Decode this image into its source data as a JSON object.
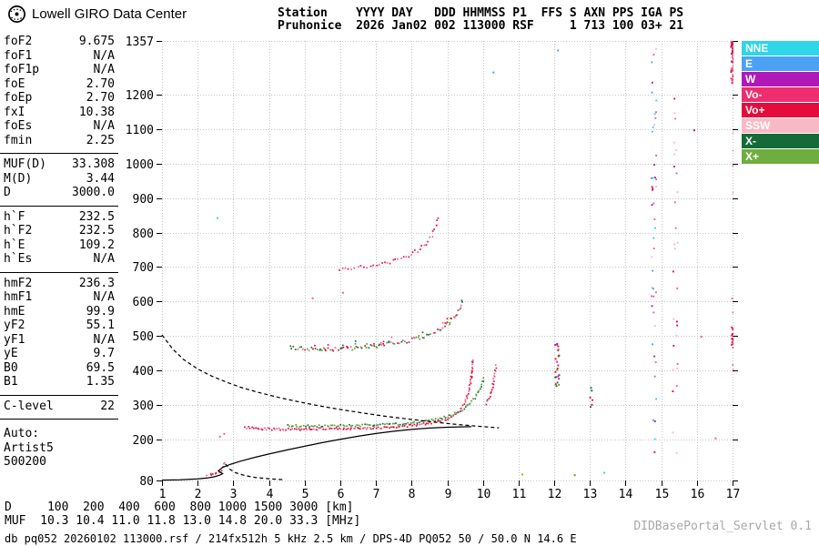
{
  "header": {
    "logo_text": "Lowell GIRO Data Center",
    "line1": "Station    YYYY DAY   DDD HHMMSS P1  FFS S AXN PPS IGA PS",
    "line2": "Pruhonice  2026 Jan02 002 113000 RSF     1 713 100 03+ 21"
  },
  "params": {
    "groups": [
      {
        "rows": [
          [
            "foF2",
            "9.675"
          ],
          [
            "foF1",
            "N/A"
          ],
          [
            "foF1p",
            "N/A"
          ],
          [
            "foE",
            "2.70"
          ],
          [
            "foEp",
            "2.70"
          ],
          [
            "fxI",
            "10.38"
          ],
          [
            "foEs",
            "N/A"
          ],
          [
            "fmin",
            "2.25"
          ]
        ]
      },
      {
        "rows": [
          [
            "MUF(D)",
            "33.308"
          ],
          [
            "M(D)",
            "3.44"
          ],
          [
            "D",
            "3000.0"
          ]
        ]
      },
      {
        "rows": [
          [
            "h`F",
            "232.5"
          ],
          [
            "h`F2",
            "232.5"
          ],
          [
            "h`E",
            "109.2"
          ],
          [
            "h`Es",
            "N/A"
          ]
        ]
      },
      {
        "rows": [
          [
            "hmF2",
            "236.3"
          ],
          [
            "hmF1",
            "N/A"
          ],
          [
            "hmE",
            "99.9"
          ],
          [
            "yF2",
            "55.1"
          ],
          [
            "yF1",
            "N/A"
          ],
          [
            "yE",
            "9.7"
          ],
          [
            "B0",
            "69.5"
          ],
          [
            "B1",
            "1.35"
          ]
        ]
      },
      {
        "rows": [
          [
            "C-level",
            "22"
          ]
        ]
      }
    ],
    "auto": [
      "Auto:",
      "Artist5",
      "500200"
    ]
  },
  "legend": [
    {
      "label": "NNE",
      "color": "#2fd5e9"
    },
    {
      "label": "E",
      "color": "#4ba2f5"
    },
    {
      "label": "W",
      "color": "#b118b8"
    },
    {
      "label": "Vo-",
      "color": "#ee2e6e"
    },
    {
      "label": "Vo+",
      "color": "#e50c3c"
    },
    {
      "label": "SSW",
      "color": "#f9b9c4"
    },
    {
      "label": "X-",
      "color": "#156a39"
    },
    {
      "label": "X+",
      "color": "#6fae3e"
    }
  ],
  "colors": {
    "background": "#ffffff",
    "grid": "#c4c4c4",
    "axis": "#000000",
    "servlet_text": "#a8a8a8"
  },
  "chart_data": {
    "type": "scatter",
    "title": "Ionogram Pruhonice 2026 Jan02 113000",
    "x_unit": "MHz",
    "y_unit": "km",
    "xlim": [
      1,
      17
    ],
    "ylim": [
      80,
      1357
    ],
    "x_ticks": [
      1,
      2,
      3,
      4,
      5,
      6,
      7,
      8,
      9,
      10,
      11,
      12,
      13,
      14,
      15,
      16,
      17
    ],
    "y_ticks": [
      80,
      200,
      300,
      400,
      500,
      600,
      700,
      800,
      900,
      1000,
      1100,
      1200,
      1357
    ],
    "grid": true,
    "series": [
      {
        "name": "E-trace",
        "mode": "dots",
        "colors": [
          "#e50c3c",
          "#f06090"
        ],
        "step": 2.2,
        "jitter": 2.2,
        "points": [
          [
            2.25,
            98
          ],
          [
            2.33,
            99
          ],
          [
            2.42,
            101
          ],
          [
            2.5,
            104
          ],
          [
            2.57,
            108
          ],
          [
            2.63,
            113
          ],
          [
            2.68,
            120
          ],
          [
            2.72,
            129
          ],
          [
            2.76,
            141
          ]
        ]
      },
      {
        "name": "F-trace-ordinary",
        "mode": "dots",
        "colors": [
          "#e50c3c",
          "#e50c3c",
          "#f06090"
        ],
        "step": 2.0,
        "jitter": 2.6,
        "points": [
          [
            3.3,
            237
          ],
          [
            3.6,
            233.5
          ],
          [
            4,
            232
          ],
          [
            4.5,
            231.5
          ],
          [
            5,
            231.5
          ],
          [
            5.5,
            232
          ],
          [
            6,
            233
          ],
          [
            6.5,
            234
          ],
          [
            7,
            235.5
          ],
          [
            7.4,
            237.5
          ],
          [
            7.8,
            240.5
          ],
          [
            8.1,
            243.5
          ],
          [
            8.4,
            247.5
          ],
          [
            8.7,
            253
          ],
          [
            9,
            262
          ],
          [
            9.2,
            273
          ],
          [
            9.35,
            289
          ],
          [
            9.47,
            308
          ],
          [
            9.57,
            336
          ],
          [
            9.64,
            372
          ],
          [
            9.68,
            412
          ],
          [
            9.7,
            438
          ]
        ]
      },
      {
        "name": "F-trace-extraordinary",
        "mode": "dots",
        "colors": [
          "#569e38",
          "#156a39",
          "#569e38"
        ],
        "step": 2.2,
        "jitter": 2.4,
        "points": [
          [
            4.5,
            241
          ],
          [
            5,
            240.5
          ],
          [
            5.5,
            240.5
          ],
          [
            6,
            241
          ],
          [
            6.5,
            242
          ],
          [
            7,
            243.5
          ],
          [
            7.5,
            246
          ],
          [
            8,
            249.5
          ],
          [
            8.3,
            253
          ],
          [
            8.6,
            258
          ],
          [
            8.9,
            265
          ],
          [
            9.15,
            274
          ],
          [
            9.4,
            287
          ],
          [
            9.6,
            304
          ],
          [
            9.78,
            327
          ],
          [
            9.92,
            355
          ],
          [
            10.02,
            385
          ]
        ]
      },
      {
        "name": "x-mode-cusp",
        "mode": "dots",
        "colors": [
          "#f06090",
          "#e50c3c"
        ],
        "step": 2.2,
        "jitter": 2.2,
        "points": [
          [
            10.08,
            305
          ],
          [
            10.17,
            328
          ],
          [
            10.25,
            355
          ],
          [
            10.31,
            388
          ],
          [
            10.36,
            422
          ]
        ]
      },
      {
        "name": "second-hop",
        "mode": "dots",
        "colors": [
          "#e50c3c",
          "#f06090",
          "#569e38",
          "#156a39"
        ],
        "step": 2.4,
        "jitter": 4.5,
        "double": true,
        "points": [
          [
            4.6,
            469
          ],
          [
            5,
            466
          ],
          [
            5.4,
            464
          ],
          [
            5.8,
            464.5
          ],
          [
            6.2,
            466
          ],
          [
            6.6,
            469
          ],
          [
            7,
            473
          ],
          [
            7.4,
            478.5
          ],
          [
            7.8,
            486
          ],
          [
            8.1,
            494
          ],
          [
            8.4,
            504
          ],
          [
            8.7,
            517
          ],
          [
            8.95,
            533
          ],
          [
            9.15,
            553
          ],
          [
            9.3,
            578
          ],
          [
            9.42,
            608
          ]
        ]
      },
      {
        "name": "third-hop",
        "mode": "dots",
        "colors": [
          "#e50c3c",
          "#f06090"
        ],
        "step": 3.2,
        "jitter": 4,
        "points": [
          [
            5.95,
            698
          ],
          [
            6.3,
            700
          ],
          [
            6.65,
            703.5
          ],
          [
            7,
            708
          ],
          [
            7.3,
            715
          ],
          [
            7.6,
            724
          ],
          [
            7.9,
            736
          ],
          [
            8.15,
            751
          ],
          [
            8.38,
            771
          ],
          [
            8.55,
            794
          ],
          [
            8.67,
            820
          ],
          [
            8.74,
            849
          ]
        ]
      },
      {
        "name": "true-height-profile",
        "mode": "line",
        "style": "solid",
        "color": "#000000",
        "points": [
          [
            1,
            81
          ],
          [
            1.5,
            82
          ],
          [
            2,
            84.5
          ],
          [
            2.3,
            87.5
          ],
          [
            2.5,
            91.5
          ],
          [
            2.63,
            96
          ],
          [
            2.7,
            100
          ],
          [
            2.58,
            108
          ],
          [
            2.7,
            118
          ],
          [
            2.92,
            127
          ],
          [
            3.2,
            136
          ],
          [
            3.6,
            147
          ],
          [
            4,
            157
          ],
          [
            4.5,
            168.5
          ],
          [
            5,
            179.5
          ],
          [
            5.5,
            190
          ],
          [
            6,
            199.5
          ],
          [
            6.5,
            208.5
          ],
          [
            7,
            216.5
          ],
          [
            7.5,
            223
          ],
          [
            8,
            228.5
          ],
          [
            8.5,
            232.3
          ],
          [
            9,
            234.6
          ],
          [
            9.35,
            235.7
          ],
          [
            9.675,
            236.3
          ]
        ]
      },
      {
        "name": "muf-transmission-curve",
        "mode": "line",
        "style": "dashed",
        "color": "#000000",
        "points": [
          [
            1,
            503
          ],
          [
            1.3,
            462
          ],
          [
            1.6,
            432
          ],
          [
            2,
            404
          ],
          [
            2.4,
            383
          ],
          [
            2.8,
            366
          ],
          [
            3.2,
            351
          ],
          [
            3.7,
            336
          ],
          [
            4.2,
            323
          ],
          [
            4.7,
            311.5
          ],
          [
            5.2,
            301
          ],
          [
            5.7,
            291.5
          ],
          [
            6.2,
            283
          ],
          [
            6.7,
            275
          ],
          [
            7.2,
            267.5
          ],
          [
            7.7,
            261
          ],
          [
            8.2,
            255
          ],
          [
            8.7,
            249
          ],
          [
            9.2,
            243.5
          ],
          [
            9.7,
            239
          ],
          [
            10.1,
            235.5
          ],
          [
            10.45,
            233
          ]
        ]
      },
      {
        "name": "profile-extrapolated",
        "mode": "line",
        "style": "dashed",
        "color": "#000000",
        "points": [
          [
            2.78,
            128
          ],
          [
            2.9,
            113
          ],
          [
            3.05,
            103
          ],
          [
            3.3,
            95
          ],
          [
            3.6,
            89
          ],
          [
            4,
            85
          ],
          [
            4.4,
            82.5
          ]
        ]
      },
      {
        "name": "noise-12MHz",
        "mode": "noise",
        "f": [
          12.0,
          12.12
        ],
        "h": [
          348,
          480
        ],
        "count": 24,
        "colors": [
          "#e50c3c",
          "#569e38",
          "#156a39",
          "#a81cb4"
        ]
      },
      {
        "name": "noise-13MHz",
        "mode": "noise",
        "f": [
          12.98,
          13.08
        ],
        "h": [
          285,
          355
        ],
        "count": 6,
        "colors": [
          "#e50c3c",
          "#156a39"
        ]
      },
      {
        "name": "noise-14.8MHz",
        "mode": "noise",
        "f": [
          14.7,
          14.85
        ],
        "h": [
          95,
          1350
        ],
        "count": 46,
        "colors": [
          "#2fd5e9",
          "#4ba2f5",
          "#e50c3c",
          "#f06090",
          "#a81cb4",
          "#f9b9c4"
        ]
      },
      {
        "name": "noise-15.4MHz",
        "mode": "noise",
        "f": [
          15.3,
          15.44
        ],
        "h": [
          110,
          1270
        ],
        "count": 28,
        "colors": [
          "#e50c3c",
          "#f06090",
          "#f9b9c4"
        ]
      },
      {
        "name": "noise-17MHz-top",
        "mode": "noise",
        "f": [
          16.93,
          17.05
        ],
        "h": [
          1235,
          1357
        ],
        "count": 70,
        "colors": [
          "#e50c3c",
          "#e50c3c",
          "#f06090"
        ]
      },
      {
        "name": "noise-17MHz-mid",
        "mode": "noise",
        "f": [
          16.95,
          17.05
        ],
        "h": [
          462,
          528
        ],
        "count": 26,
        "colors": [
          "#e50c3c"
        ]
      },
      {
        "name": "noise-17MHz-sparse",
        "mode": "noise",
        "f": [
          16.95,
          17.05
        ],
        "h": [
          150,
          1200
        ],
        "count": 12,
        "colors": [
          "#e50c3c",
          "#f06090"
        ]
      },
      {
        "name": "stray-echoes",
        "mode": "points",
        "size": 2,
        "points": [
          [
            2.53,
            845,
            "#2fd5e9"
          ],
          [
            10.27,
            1268,
            "#4ba2f5"
          ],
          [
            12.08,
            1332,
            "#4ba2f5"
          ],
          [
            11.08,
            100,
            "#b8a818"
          ],
          [
            12.55,
            98,
            "#569e38"
          ],
          [
            14.75,
            640,
            "#4ba2f5"
          ],
          [
            16.1,
            500,
            "#f06090"
          ],
          [
            5.2,
            612,
            "#f06090"
          ],
          [
            6.05,
            628,
            "#f06090"
          ],
          [
            2.6,
            210,
            "#f06090"
          ],
          [
            2.72,
            218,
            "#f06090"
          ],
          [
            13.38,
            105,
            "#2fd5e9"
          ],
          [
            15.9,
            1100,
            "#e50c3c"
          ],
          [
            16.5,
            205,
            "#f06090"
          ]
        ]
      }
    ]
  },
  "footer": {
    "d_line": "D     100  200  400  600  800 1000 1500 3000 [km]",
    "muf_line": "MUF  10.3 10.4 11.0 11.8 13.0 14.8 20.0 33.3 [MHz]",
    "status": "db pq052 20260102 113000.rsf / 214fx512h 5 kHz 2.5 km / DPS-4D PQ052 50 / 50.0 N 14.6 E",
    "servlet": "DIDBasePortal_Servlet 0.1"
  }
}
